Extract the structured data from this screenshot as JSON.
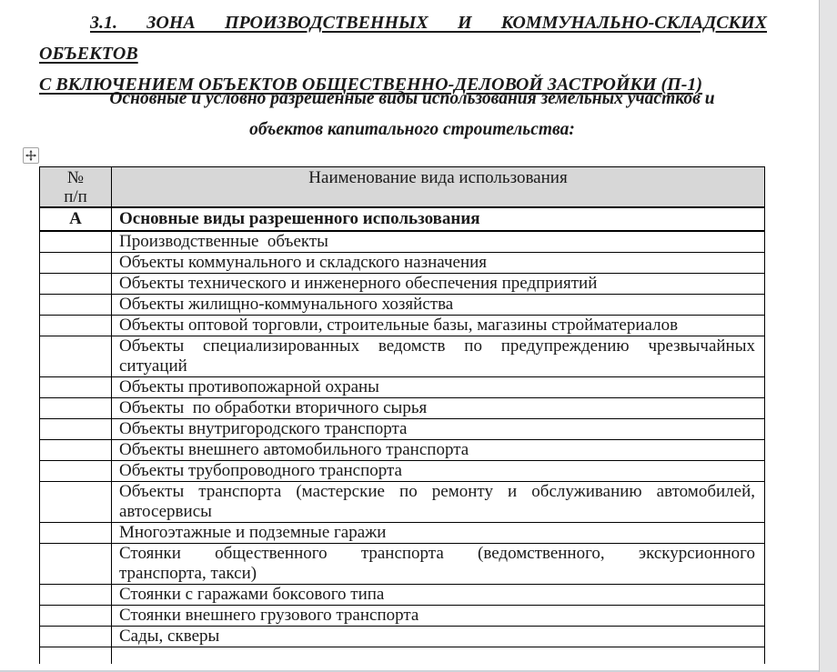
{
  "document": {
    "title_lines": [
      "3.1. ЗОНА ПРОИЗВОДСТВЕННЫХ И КОММУНАЛЬНО-СКЛАДСКИХ ОБЪЕКТОВ",
      "С ВКЛЮЧЕНИЕМ ОБЪЕКТОВ ОБЩЕСТВЕННО-ДЕЛОВОЙ ЗАСТРОЙКИ (П-1)"
    ],
    "subtitle_lines": [
      "Основные и условно разрешенные виды использования земельных участков и",
      "объектов капитального строительства:"
    ]
  },
  "table": {
    "header": {
      "no_lines": [
        "№",
        "п/п"
      ],
      "name": "Наименование вида использования"
    },
    "rows": [
      {
        "no": "А",
        "bold": true,
        "cls": "lead",
        "lines": [
          "Основные виды разрешенного использования"
        ]
      },
      {
        "no": "",
        "cls": "",
        "lines": [
          "Производственные  объекты"
        ]
      },
      {
        "no": "",
        "cls": "",
        "lines": [
          "Объекты коммунального и складского назначения"
        ]
      },
      {
        "no": "",
        "cls": "",
        "lines": [
          "Объекты технического и инженерного обеспечения предприятий"
        ]
      },
      {
        "no": "",
        "cls": "",
        "lines": [
          "Объекты жилищно-коммунального хозяйства"
        ]
      },
      {
        "no": "",
        "cls": "",
        "lines": [
          "Объекты оптовой торговли, строительные базы, магазины стройматериалов"
        ]
      },
      {
        "no": "",
        "cls": "tall",
        "lines": [
          "Объекты специализированных ведомств по предупреждению чрезвычайных",
          "ситуаций"
        ]
      },
      {
        "no": "",
        "cls": "",
        "lines": [
          "Объекты противопожарной охраны"
        ]
      },
      {
        "no": "",
        "cls": "",
        "lines": [
          "Объекты  по обработки вторичного сырья"
        ]
      },
      {
        "no": "",
        "cls": "",
        "lines": [
          "Объекты внутригородского транспорта"
        ]
      },
      {
        "no": "",
        "cls": "",
        "lines": [
          "Объекты внешнего автомобильного транспорта"
        ]
      },
      {
        "no": "",
        "cls": "",
        "lines": [
          "Объекты трубопроводного транспорта"
        ]
      },
      {
        "no": "",
        "cls": "tall",
        "lines": [
          "Объекты транспорта (мастерские по ремонту и обслуживанию автомобилей,",
          "автосервисы"
        ]
      },
      {
        "no": "",
        "cls": "",
        "lines": [
          "Многоэтажные и подземные гаражи"
        ]
      },
      {
        "no": "",
        "cls": "tall",
        "lines": [
          "Стоянки общественного транспорта (ведомственного, экскурсионного",
          "транспорта, такси)"
        ]
      },
      {
        "no": "",
        "cls": "",
        "lines": [
          "Стоянки с гаражами боксового типа"
        ]
      },
      {
        "no": "",
        "cls": "",
        "lines": [
          "Стоянки внешнего грузового транспорта"
        ]
      },
      {
        "no": "",
        "cls": "",
        "lines": [
          "Сады, скверы"
        ]
      },
      {
        "no": "",
        "cls": "stub",
        "lines": [
          ""
        ]
      }
    ]
  },
  "icons": {
    "move_handle": "move-icon"
  },
  "colors": {
    "page": "#ffffff",
    "gutter": "#e4e4e5",
    "gutter-line": "#c2c2c4",
    "header-bg": "#d7d7d7",
    "border": "#000000",
    "bottom-edge": "#ccd3d9"
  }
}
